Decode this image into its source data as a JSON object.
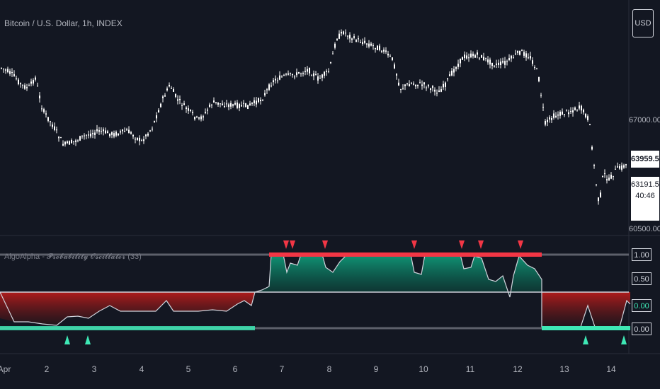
{
  "header": {
    "symbol_title": "Bitcoin / U.S. Dollar, 1h, INDEX"
  },
  "currency_button": {
    "label": "USD"
  },
  "price_axis": {
    "labels": [
      "67000.00",
      "60500.00"
    ],
    "last_price": "63959.54",
    "box_price": "63191.54",
    "box_countdown": "40:46"
  },
  "indicator": {
    "title": "AlgoAlpha - 𝓟𝓻𝓸𝓫𝓪𝓫𝓲𝓵𝓲𝓽𝔂 𝓞𝓼𝓬𝓲𝓵𝓵𝓪𝓽𝓸𝓻 (33)",
    "axis_tags": [
      "1.00",
      "0.50",
      "0.00",
      "0.00"
    ]
  },
  "time_axis": {
    "ticks": [
      "Apr",
      "2",
      "3",
      "4",
      "5",
      "6",
      "7",
      "8",
      "9",
      "10",
      "11",
      "12",
      "13",
      "14"
    ]
  },
  "colors": {
    "background": "#131722",
    "candle": "#ffffff",
    "bull": "#26a69a",
    "bear": "#f23645",
    "teal_bright": "#3ee8b5",
    "grid": "#2a2e39"
  }
}
